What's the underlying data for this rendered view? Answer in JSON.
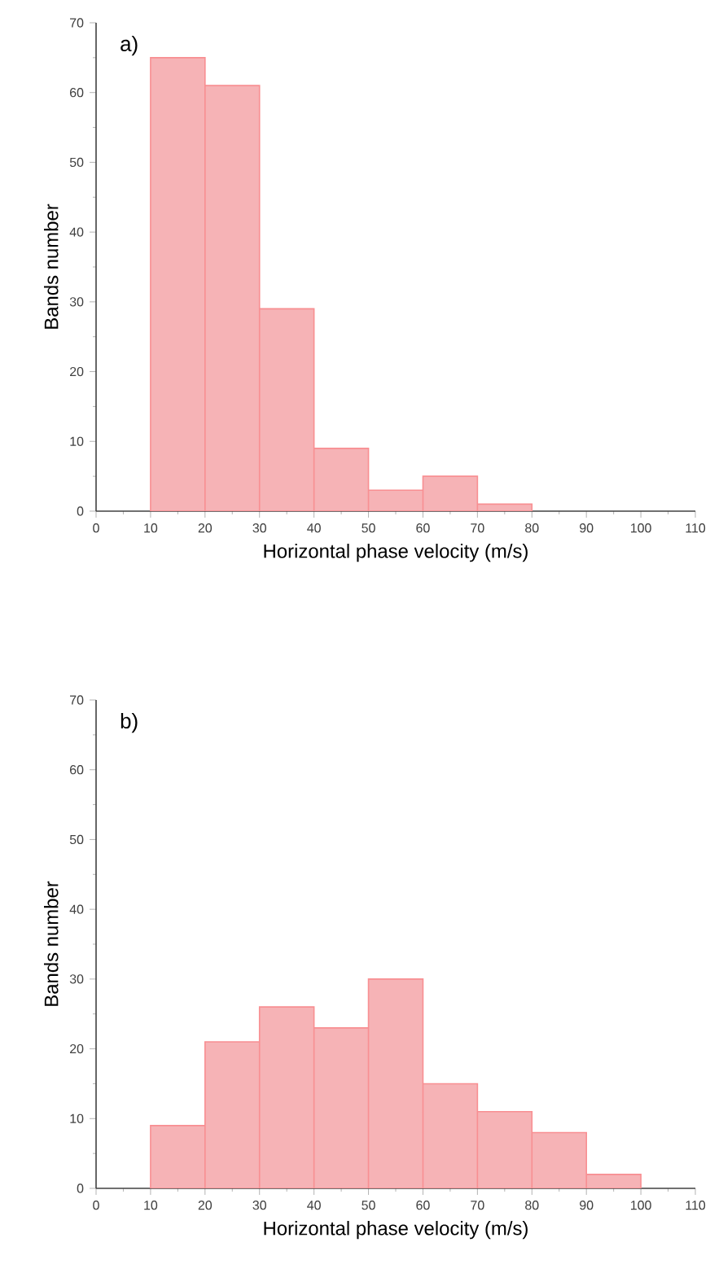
{
  "chart_data": [
    {
      "type": "histogram",
      "annotations": [
        "a)"
      ],
      "xlabel": "Horizontal phase velocity (m/s)",
      "ylabel": "Bands number",
      "bins": [
        10,
        20,
        30,
        40,
        50,
        60,
        70,
        80
      ],
      "values": [
        65,
        61,
        29,
        9,
        3,
        5,
        1
      ],
      "color": "#f6b3b6",
      "xlim": [
        0,
        110
      ],
      "xticks": [
        0,
        10,
        20,
        30,
        40,
        50,
        60,
        70,
        80,
        90,
        100,
        110
      ],
      "ylim": [
        0,
        70
      ],
      "yticks": [
        0,
        10,
        20,
        30,
        40,
        50,
        60,
        70
      ]
    },
    {
      "type": "histogram",
      "annotations": [
        "b)"
      ],
      "xlabel": "Horizontal phase velocity (m/s)",
      "ylabel": "Bands number",
      "bins": [
        10,
        20,
        30,
        40,
        50,
        60,
        70,
        80,
        90,
        100
      ],
      "values": [
        9,
        21,
        26,
        23,
        30,
        15,
        11,
        8,
        2
      ],
      "color": "#f6b3b6",
      "xlim": [
        0,
        110
      ],
      "xticks": [
        0,
        10,
        20,
        30,
        40,
        50,
        60,
        70,
        80,
        90,
        100,
        110
      ],
      "ylim": [
        0,
        70
      ],
      "yticks": [
        0,
        10,
        20,
        30,
        40,
        50,
        60,
        70
      ]
    }
  ]
}
